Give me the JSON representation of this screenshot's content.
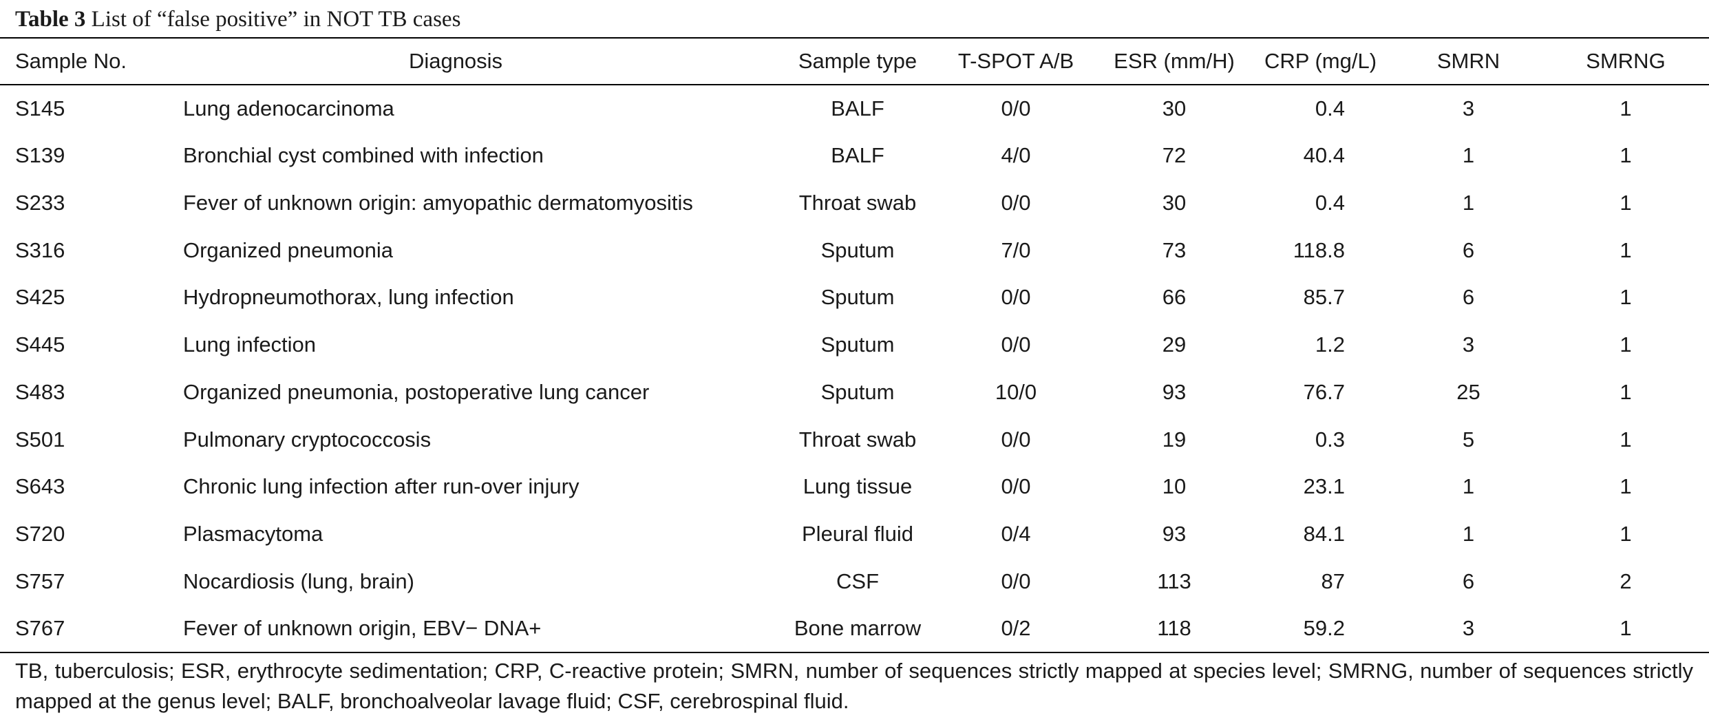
{
  "caption": {
    "label": "Table 3",
    "text": "List of “false positive” in NOT TB cases"
  },
  "headers": [
    "Sample No.",
    "Diagnosis",
    "Sample type",
    "T-SPOT A/B",
    "ESR (mm/H)",
    "CRP (mg/L)",
    "SMRN",
    "SMRNG"
  ],
  "rows": [
    [
      "S145",
      "Lung adenocarcinoma",
      "BALF",
      "0/0",
      "30",
      "0.4",
      "3",
      "1"
    ],
    [
      "S139",
      "Bronchial cyst combined with infection",
      "BALF",
      "4/0",
      "72",
      "40.4",
      "1",
      "1"
    ],
    [
      "S233",
      "Fever of unknown origin: amyopathic dermatomyositis",
      "Throat swab",
      "0/0",
      "30",
      "0.4",
      "1",
      "1"
    ],
    [
      "S316",
      "Organized pneumonia",
      "Sputum",
      "7/0",
      "73",
      "118.8",
      "6",
      "1"
    ],
    [
      "S425",
      "Hydropneumothorax, lung infection",
      "Sputum",
      "0/0",
      "66",
      "85.7",
      "6",
      "1"
    ],
    [
      "S445",
      "Lung infection",
      "Sputum",
      "0/0",
      "29",
      "1.2",
      "3",
      "1"
    ],
    [
      "S483",
      "Organized pneumonia, postoperative lung cancer",
      "Sputum",
      "10/0",
      "93",
      "76.7",
      "25",
      "1"
    ],
    [
      "S501",
      "Pulmonary cryptococcosis",
      "Throat swab",
      "0/0",
      "19",
      "0.3",
      "5",
      "1"
    ],
    [
      "S643",
      "Chronic lung infection after run-over injury",
      "Lung tissue",
      "0/0",
      "10",
      "23.1",
      "1",
      "1"
    ],
    [
      "S720",
      "Plasmacytoma",
      "Pleural fluid",
      "0/4",
      "93",
      "84.1",
      "1",
      "1"
    ],
    [
      "S757",
      "Nocardiosis (lung, brain)",
      "CSF",
      "0/0",
      "113",
      "87",
      "6",
      "2"
    ],
    [
      "S767",
      "Fever of unknown origin, EBV− DNA+",
      "Bone marrow",
      "0/2",
      "118",
      "59.2",
      "3",
      "1"
    ]
  ],
  "footnote": "TB, tuberculosis; ESR, erythrocyte sedimentation; CRP, C-reactive protein; SMRN, number of sequences strictly mapped at species level; SMRNG, number of sequences strictly mapped at the genus level; BALF, bronchoalveolar lavage fluid; CSF, cerebrospinal fluid."
}
